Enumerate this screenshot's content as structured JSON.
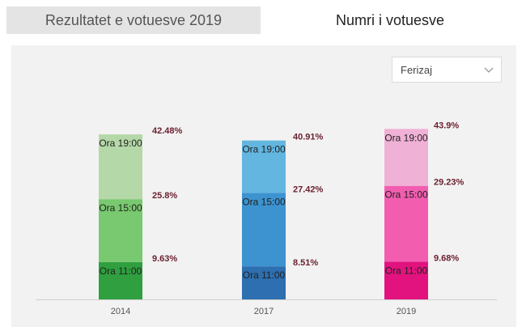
{
  "tabs": [
    {
      "label": "Rezultatet e votuesve 2019",
      "active": false
    },
    {
      "label": "Numri i votuesve",
      "active": true
    }
  ],
  "municipality_select": {
    "selected": "Ferizaj"
  },
  "colors": {
    "2014": [
      "#2f9f3f",
      "#78c96f",
      "#b5d8a8"
    ],
    "2017": [
      "#2d6fb0",
      "#3d93d0",
      "#62b6e0"
    ],
    "2019": [
      "#e2137e",
      "#f25db0",
      "#f0b1d6"
    ]
  },
  "chart_data": {
    "type": "bar",
    "categories": [
      "2014",
      "2017",
      "2019"
    ],
    "series": [
      {
        "name": "Ora 11:00",
        "values": [
          9.63,
          8.51,
          9.68
        ],
        "labels": [
          "9.63%",
          "8.51%",
          "9.68%"
        ]
      },
      {
        "name": "Ora 15:00",
        "values": [
          25.8,
          27.42,
          29.23
        ],
        "labels": [
          "25.8%",
          "27.42%",
          "29.23%"
        ]
      },
      {
        "name": "Ora 19:00",
        "values": [
          42.48,
          40.91,
          43.9
        ],
        "labels": [
          "42.48%",
          "40.91%",
          "43.9%"
        ]
      }
    ],
    "title": "",
    "xlabel": "",
    "ylabel": "",
    "ylim": [
      0,
      50
    ]
  }
}
